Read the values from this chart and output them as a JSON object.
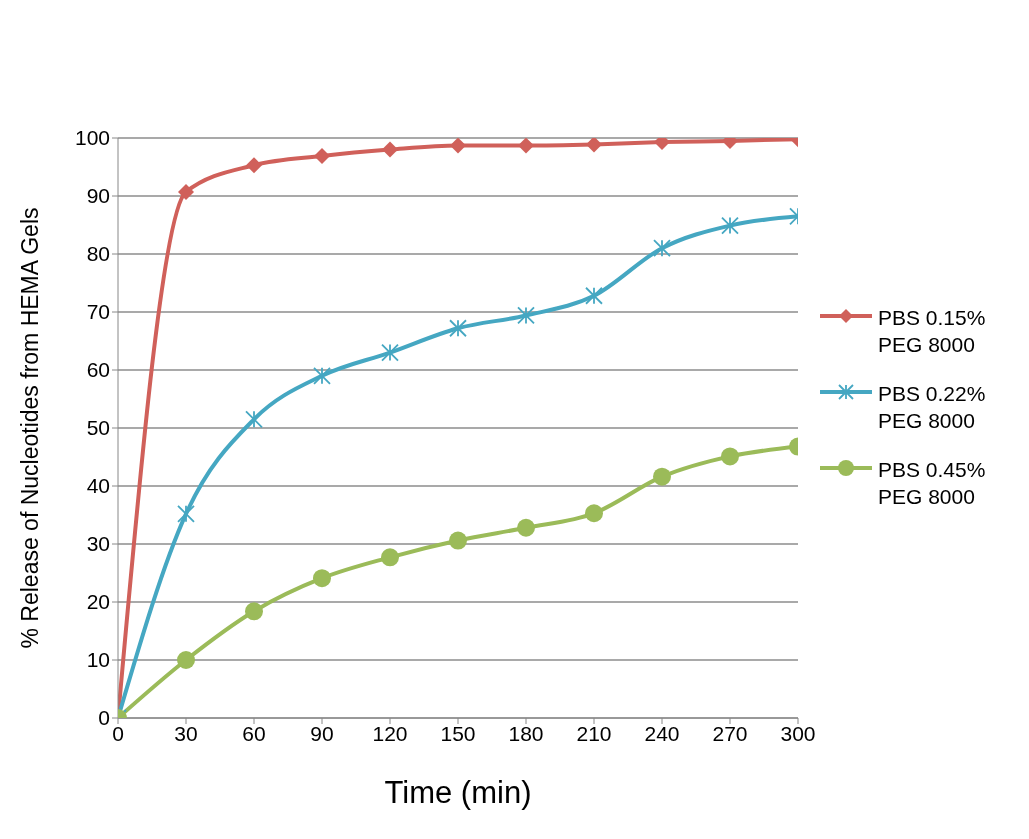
{
  "chart_data": {
    "type": "line",
    "xlabel": "Time (min)",
    "ylabel": "% Release of Nucleotides from HEMA Gels",
    "x": [
      0,
      30,
      60,
      90,
      120,
      150,
      180,
      210,
      240,
      270,
      300
    ],
    "series": [
      {
        "name": "PBS 0.15% PEG 8000",
        "color": "#d0605a",
        "marker": "diamond",
        "values": [
          0,
          90.7,
          95.3,
          96.9,
          98.0,
          98.7,
          98.7,
          98.9,
          99.3,
          99.5,
          99.8
        ]
      },
      {
        "name": "PBS 0.22% PEG 8000",
        "color": "#45a7c2",
        "marker": "cross",
        "values": [
          0,
          35.2,
          51.5,
          59.0,
          63.0,
          67.2,
          69.4,
          72.8,
          81.0,
          84.9,
          86.5
        ]
      },
      {
        "name": "PBS 0.45% PEG 8000",
        "color": "#9bbb59",
        "marker": "circle",
        "values": [
          0,
          10.0,
          18.4,
          24.1,
          27.7,
          30.6,
          32.8,
          35.3,
          41.6,
          45.1,
          46.8
        ]
      }
    ],
    "xlim": [
      0,
      300
    ],
    "xticks": [
      0,
      30,
      60,
      90,
      120,
      150,
      180,
      210,
      240,
      270,
      300
    ],
    "ylim": [
      0,
      100
    ],
    "yticks": [
      0,
      10,
      20,
      30,
      40,
      50,
      60,
      70,
      80,
      90,
      100
    ],
    "grid": "y",
    "legend": "right",
    "line_style": "solid"
  }
}
